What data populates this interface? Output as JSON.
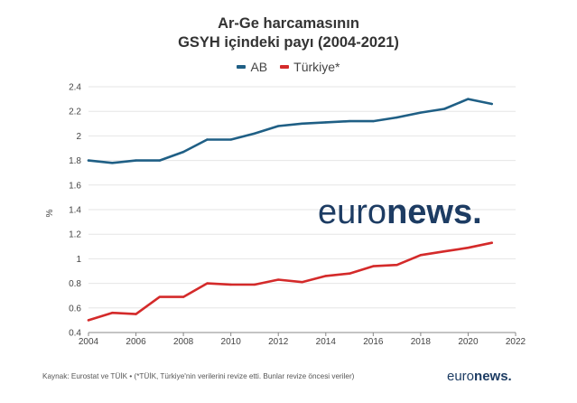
{
  "title_line1": "Ar-Ge harcamasının",
  "title_line2": "GSYH içindeki payı (2004-2021)",
  "watermark": {
    "light": "euro",
    "bold": "news",
    "dot": "."
  },
  "source": "Kaynak: Eurostat ve TÜİK • (*TÜİK, Türkiye'nin verilerini revize etti. Bunlar revize öncesi veriler)",
  "brand": {
    "light": "euro",
    "bold": "news",
    "dot": "."
  },
  "colors": {
    "ab": "#1f5f85",
    "turkiye": "#d42a2a",
    "grid": "#e6e6e6"
  },
  "chart_data": {
    "type": "line",
    "title": "Ar-Ge harcamasının GSYH içindeki payı (2004-2021)",
    "xlabel": "",
    "ylabel": "%",
    "xlim": [
      2004,
      2022
    ],
    "ylim": [
      0.4,
      2.4
    ],
    "x_ticks": [
      2004,
      2006,
      2008,
      2010,
      2012,
      2014,
      2016,
      2018,
      2020,
      2022
    ],
    "y_ticks": [
      0.4,
      0.6,
      0.8,
      1,
      1.2,
      1.4,
      1.6,
      1.8,
      2,
      2.2,
      2.4
    ],
    "legend_position": "top",
    "grid": "horizontal",
    "x": [
      2004,
      2005,
      2006,
      2007,
      2008,
      2009,
      2010,
      2011,
      2012,
      2013,
      2014,
      2015,
      2016,
      2017,
      2018,
      2019,
      2020,
      2021
    ],
    "series": [
      {
        "name": "AB",
        "color": "#1f5f85",
        "values": [
          1.8,
          1.78,
          1.8,
          1.8,
          1.87,
          1.97,
          1.97,
          2.02,
          2.08,
          2.1,
          2.11,
          2.12,
          2.12,
          2.15,
          2.19,
          2.22,
          2.3,
          2.26
        ]
      },
      {
        "name": "Türkiye*",
        "color": "#d42a2a",
        "values": [
          0.5,
          0.56,
          0.55,
          0.69,
          0.69,
          0.8,
          0.79,
          0.79,
          0.83,
          0.81,
          0.86,
          0.88,
          0.94,
          0.95,
          1.03,
          1.06,
          1.09,
          1.13
        ]
      }
    ]
  }
}
